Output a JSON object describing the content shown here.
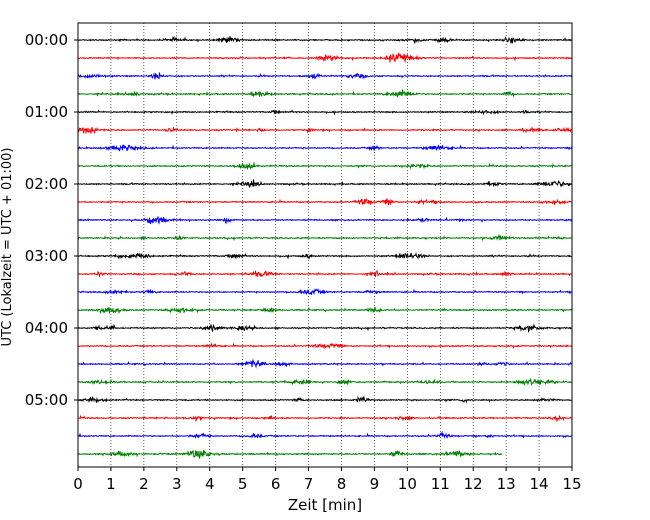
{
  "chart_data": {
    "type": "line",
    "title": "",
    "xlabel": "Zeit  [min]",
    "ylabel": "UTC (Lokalzeit = UTC + 01:00)",
    "xlim": [
      0,
      15
    ],
    "x_ticks": [
      0,
      1,
      2,
      3,
      4,
      5,
      6,
      7,
      8,
      9,
      10,
      11,
      12,
      13,
      14,
      15
    ],
    "x_tick_labels": [
      "0",
      "1",
      "2",
      "3",
      "4",
      "5",
      "6",
      "7",
      "8",
      "9",
      "10",
      "11",
      "12",
      "13",
      "14",
      "15"
    ],
    "y_tick_labels": [
      "00:00",
      "01:00",
      "02:00",
      "03:00",
      "04:00",
      "05:00"
    ],
    "y_tick_rows": [
      0,
      4,
      8,
      12,
      16,
      20
    ],
    "grid": "vertical dotted",
    "row_minutes": 15,
    "row_colors": [
      "#000000",
      "#ff0000",
      "#0000ff",
      "#008000"
    ],
    "rows": [
      {
        "start": "00:00",
        "end_min": 15
      },
      {
        "start": "00:15",
        "end_min": 15
      },
      {
        "start": "00:30",
        "end_min": 15
      },
      {
        "start": "00:45",
        "end_min": 15
      },
      {
        "start": "01:00",
        "end_min": 15
      },
      {
        "start": "01:15",
        "end_min": 15
      },
      {
        "start": "01:30",
        "end_min": 15
      },
      {
        "start": "01:45",
        "end_min": 15
      },
      {
        "start": "02:00",
        "end_min": 15
      },
      {
        "start": "02:15",
        "end_min": 15
      },
      {
        "start": "02:30",
        "end_min": 15
      },
      {
        "start": "02:45",
        "end_min": 15
      },
      {
        "start": "03:00",
        "end_min": 15
      },
      {
        "start": "03:15",
        "end_min": 15
      },
      {
        "start": "03:30",
        "end_min": 15
      },
      {
        "start": "03:45",
        "end_min": 15
      },
      {
        "start": "04:00",
        "end_min": 15
      },
      {
        "start": "04:15",
        "end_min": 15
      },
      {
        "start": "04:30",
        "end_min": 15
      },
      {
        "start": "04:45",
        "end_min": 15
      },
      {
        "start": "05:00",
        "end_min": 15
      },
      {
        "start": "05:15",
        "end_min": 15
      },
      {
        "start": "05:30",
        "end_min": 15
      },
      {
        "start": "05:45",
        "end_min": 12.9
      }
    ]
  }
}
